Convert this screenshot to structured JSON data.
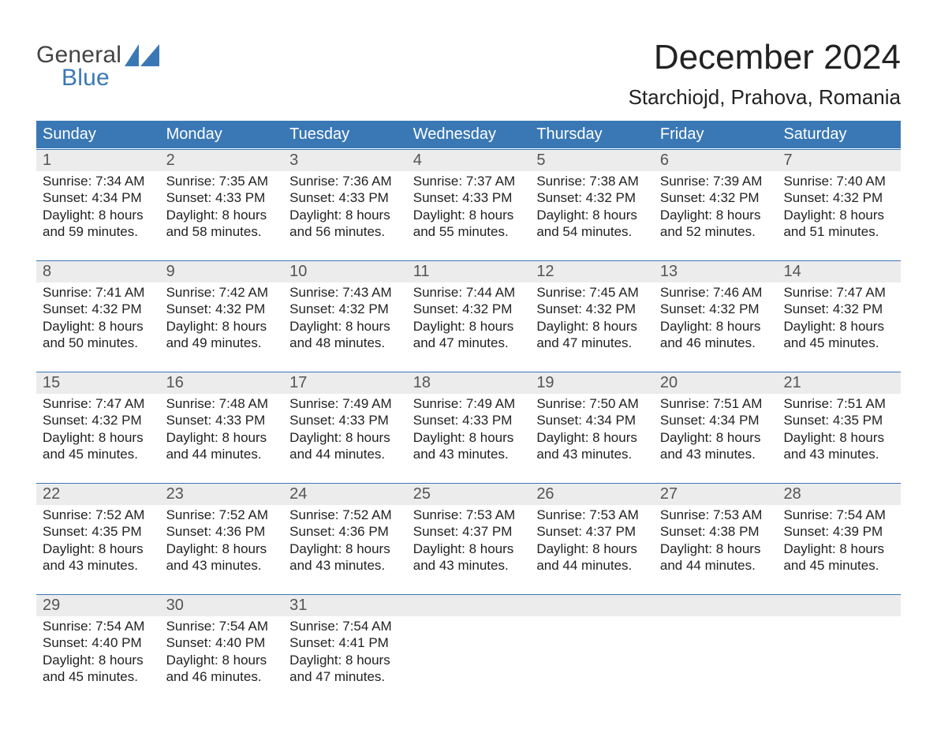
{
  "colors": {
    "header_bg": "#3a78b5",
    "header_text": "#ffffff",
    "daynum_bg": "#ececec",
    "daynum_text": "#555555",
    "body_text": "#222222",
    "row_divider": "#3a78b5",
    "logo_dark": "#444444",
    "logo_blue": "#3a78b5",
    "page_bg": "#ffffff"
  },
  "typography": {
    "title_fontsize": 44,
    "subtitle_fontsize": 26,
    "dow_fontsize": 20,
    "daynum_fontsize": 20,
    "body_fontsize": 17,
    "font_family": "Arial, Helvetica, sans-serif"
  },
  "logo": {
    "line1": "General",
    "line2": "Blue",
    "icon_name": "sail-icon",
    "icon_color": "#3a78b5"
  },
  "title": "December 2024",
  "subtitle": "Starchiojd, Prahova, Romania",
  "dow": [
    "Sunday",
    "Monday",
    "Tuesday",
    "Wednesday",
    "Thursday",
    "Friday",
    "Saturday"
  ],
  "weeks": [
    [
      {
        "n": "1",
        "sunrise": "Sunrise: 7:34 AM",
        "sunset": "Sunset: 4:34 PM",
        "d1": "Daylight: 8 hours",
        "d2": "and 59 minutes."
      },
      {
        "n": "2",
        "sunrise": "Sunrise: 7:35 AM",
        "sunset": "Sunset: 4:33 PM",
        "d1": "Daylight: 8 hours",
        "d2": "and 58 minutes."
      },
      {
        "n": "3",
        "sunrise": "Sunrise: 7:36 AM",
        "sunset": "Sunset: 4:33 PM",
        "d1": "Daylight: 8 hours",
        "d2": "and 56 minutes."
      },
      {
        "n": "4",
        "sunrise": "Sunrise: 7:37 AM",
        "sunset": "Sunset: 4:33 PM",
        "d1": "Daylight: 8 hours",
        "d2": "and 55 minutes."
      },
      {
        "n": "5",
        "sunrise": "Sunrise: 7:38 AM",
        "sunset": "Sunset: 4:32 PM",
        "d1": "Daylight: 8 hours",
        "d2": "and 54 minutes."
      },
      {
        "n": "6",
        "sunrise": "Sunrise: 7:39 AM",
        "sunset": "Sunset: 4:32 PM",
        "d1": "Daylight: 8 hours",
        "d2": "and 52 minutes."
      },
      {
        "n": "7",
        "sunrise": "Sunrise: 7:40 AM",
        "sunset": "Sunset: 4:32 PM",
        "d1": "Daylight: 8 hours",
        "d2": "and 51 minutes."
      }
    ],
    [
      {
        "n": "8",
        "sunrise": "Sunrise: 7:41 AM",
        "sunset": "Sunset: 4:32 PM",
        "d1": "Daylight: 8 hours",
        "d2": "and 50 minutes."
      },
      {
        "n": "9",
        "sunrise": "Sunrise: 7:42 AM",
        "sunset": "Sunset: 4:32 PM",
        "d1": "Daylight: 8 hours",
        "d2": "and 49 minutes."
      },
      {
        "n": "10",
        "sunrise": "Sunrise: 7:43 AM",
        "sunset": "Sunset: 4:32 PM",
        "d1": "Daylight: 8 hours",
        "d2": "and 48 minutes."
      },
      {
        "n": "11",
        "sunrise": "Sunrise: 7:44 AM",
        "sunset": "Sunset: 4:32 PM",
        "d1": "Daylight: 8 hours",
        "d2": "and 47 minutes."
      },
      {
        "n": "12",
        "sunrise": "Sunrise: 7:45 AM",
        "sunset": "Sunset: 4:32 PM",
        "d1": "Daylight: 8 hours",
        "d2": "and 47 minutes."
      },
      {
        "n": "13",
        "sunrise": "Sunrise: 7:46 AM",
        "sunset": "Sunset: 4:32 PM",
        "d1": "Daylight: 8 hours",
        "d2": "and 46 minutes."
      },
      {
        "n": "14",
        "sunrise": "Sunrise: 7:47 AM",
        "sunset": "Sunset: 4:32 PM",
        "d1": "Daylight: 8 hours",
        "d2": "and 45 minutes."
      }
    ],
    [
      {
        "n": "15",
        "sunrise": "Sunrise: 7:47 AM",
        "sunset": "Sunset: 4:32 PM",
        "d1": "Daylight: 8 hours",
        "d2": "and 45 minutes."
      },
      {
        "n": "16",
        "sunrise": "Sunrise: 7:48 AM",
        "sunset": "Sunset: 4:33 PM",
        "d1": "Daylight: 8 hours",
        "d2": "and 44 minutes."
      },
      {
        "n": "17",
        "sunrise": "Sunrise: 7:49 AM",
        "sunset": "Sunset: 4:33 PM",
        "d1": "Daylight: 8 hours",
        "d2": "and 44 minutes."
      },
      {
        "n": "18",
        "sunrise": "Sunrise: 7:49 AM",
        "sunset": "Sunset: 4:33 PM",
        "d1": "Daylight: 8 hours",
        "d2": "and 43 minutes."
      },
      {
        "n": "19",
        "sunrise": "Sunrise: 7:50 AM",
        "sunset": "Sunset: 4:34 PM",
        "d1": "Daylight: 8 hours",
        "d2": "and 43 minutes."
      },
      {
        "n": "20",
        "sunrise": "Sunrise: 7:51 AM",
        "sunset": "Sunset: 4:34 PM",
        "d1": "Daylight: 8 hours",
        "d2": "and 43 minutes."
      },
      {
        "n": "21",
        "sunrise": "Sunrise: 7:51 AM",
        "sunset": "Sunset: 4:35 PM",
        "d1": "Daylight: 8 hours",
        "d2": "and 43 minutes."
      }
    ],
    [
      {
        "n": "22",
        "sunrise": "Sunrise: 7:52 AM",
        "sunset": "Sunset: 4:35 PM",
        "d1": "Daylight: 8 hours",
        "d2": "and 43 minutes."
      },
      {
        "n": "23",
        "sunrise": "Sunrise: 7:52 AM",
        "sunset": "Sunset: 4:36 PM",
        "d1": "Daylight: 8 hours",
        "d2": "and 43 minutes."
      },
      {
        "n": "24",
        "sunrise": "Sunrise: 7:52 AM",
        "sunset": "Sunset: 4:36 PM",
        "d1": "Daylight: 8 hours",
        "d2": "and 43 minutes."
      },
      {
        "n": "25",
        "sunrise": "Sunrise: 7:53 AM",
        "sunset": "Sunset: 4:37 PM",
        "d1": "Daylight: 8 hours",
        "d2": "and 43 minutes."
      },
      {
        "n": "26",
        "sunrise": "Sunrise: 7:53 AM",
        "sunset": "Sunset: 4:37 PM",
        "d1": "Daylight: 8 hours",
        "d2": "and 44 minutes."
      },
      {
        "n": "27",
        "sunrise": "Sunrise: 7:53 AM",
        "sunset": "Sunset: 4:38 PM",
        "d1": "Daylight: 8 hours",
        "d2": "and 44 minutes."
      },
      {
        "n": "28",
        "sunrise": "Sunrise: 7:54 AM",
        "sunset": "Sunset: 4:39 PM",
        "d1": "Daylight: 8 hours",
        "d2": "and 45 minutes."
      }
    ],
    [
      {
        "n": "29",
        "sunrise": "Sunrise: 7:54 AM",
        "sunset": "Sunset: 4:40 PM",
        "d1": "Daylight: 8 hours",
        "d2": "and 45 minutes."
      },
      {
        "n": "30",
        "sunrise": "Sunrise: 7:54 AM",
        "sunset": "Sunset: 4:40 PM",
        "d1": "Daylight: 8 hours",
        "d2": "and 46 minutes."
      },
      {
        "n": "31",
        "sunrise": "Sunrise: 7:54 AM",
        "sunset": "Sunset: 4:41 PM",
        "d1": "Daylight: 8 hours",
        "d2": "and 47 minutes."
      },
      null,
      null,
      null,
      null
    ]
  ]
}
